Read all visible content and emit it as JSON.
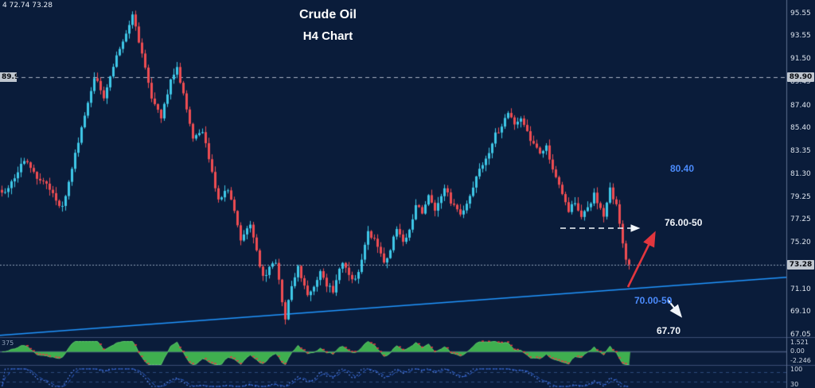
{
  "header": {
    "title_line1": "Crude Oil",
    "title_line2": "H4 Chart",
    "ohlc_info": "4 72.74 73.28"
  },
  "colors": {
    "background": "#0a1c3a",
    "bull_candle": "#3fc8e8",
    "bear_candle": "#ee4d52",
    "trendline": "#2196ff",
    "annotation_blue": "#4b8bfc",
    "annotation_white": "#f2f6fb",
    "indicator_green": "#3faf4f",
    "indicator_blue": "#5b8dff",
    "badge_bg": "#bfc6cf",
    "axis_text": "#dde4ee"
  },
  "axis": {
    "price_ticks": [
      {
        "label": "95.55",
        "price": 95.55
      },
      {
        "label": "93.55",
        "price": 93.55
      },
      {
        "label": "91.50",
        "price": 91.5
      },
      {
        "label": "89.45",
        "price": 89.45
      },
      {
        "label": "87.40",
        "price": 87.4
      },
      {
        "label": "85.40",
        "price": 85.4
      },
      {
        "label": "83.35",
        "price": 83.35
      },
      {
        "label": "81.30",
        "price": 81.3
      },
      {
        "label": "79.25",
        "price": 79.25
      },
      {
        "label": "77.25",
        "price": 77.25
      },
      {
        "label": "75.20",
        "price": 75.2
      },
      {
        "label": "71.10",
        "price": 71.1
      },
      {
        "label": "69.10",
        "price": 69.1
      },
      {
        "label": "67.05",
        "price": 67.05
      }
    ],
    "current_price_badge": {
      "label": "73.28",
      "price": 73.28
    },
    "level_badge": {
      "label": "89.90",
      "price": 89.9
    }
  },
  "annotations": [
    {
      "id": "level-80-40",
      "label": "80.40",
      "color_role": "blue",
      "price": 80.4
    },
    {
      "id": "zone-76",
      "label": "76.00-50",
      "color_role": "white",
      "price_zone": [
        76.0,
        76.5
      ]
    },
    {
      "id": "zone-70",
      "label": "70.00-50",
      "color_role": "blue",
      "price_zone": [
        70.0,
        70.5
      ]
    },
    {
      "id": "level-67-70",
      "label": "67.70",
      "color_role": "white",
      "price": 67.7
    }
  ],
  "indicator1": {
    "left_label": "375",
    "axis_labels": [
      "1.521",
      "0.00",
      "-2.246"
    ]
  },
  "indicator2": {
    "axis_labels": [
      "100",
      "30"
    ]
  },
  "chart_data": {
    "type": "candlestick",
    "title": "Crude Oil",
    "timeframe": "H4",
    "price_axis": {
      "min": 66.3,
      "max": 96.8,
      "ticks": [
        95.55,
        93.55,
        91.5,
        89.45,
        87.4,
        85.4,
        83.35,
        81.3,
        79.25,
        77.25,
        75.2,
        71.1,
        69.1,
        67.05
      ]
    },
    "current_price": 73.28,
    "resistance_line": 89.9,
    "target_zone_line": 76.5,
    "support_trendline": {
      "left_price": 67.0,
      "right_price": 72.15
    },
    "annotation_levels": {
      "upper_target": 80.4,
      "bounce_zone": "76.00-76.50",
      "trendline_zone": "70.00-70.50",
      "breakdown_target": 67.7
    },
    "close_waypoints": [
      [
        0,
        79.5
      ],
      [
        4,
        81.0
      ],
      [
        7,
        82.6
      ],
      [
        11,
        81.0
      ],
      [
        14,
        80.3
      ],
      [
        17,
        79.0
      ],
      [
        19,
        78.3
      ],
      [
        23,
        83.0
      ],
      [
        26,
        86.5
      ],
      [
        29,
        90.0
      ],
      [
        32,
        88.2
      ],
      [
        35,
        91.0
      ],
      [
        38,
        93.2
      ],
      [
        41,
        95.3
      ],
      [
        44,
        92.0
      ],
      [
        47,
        88.0
      ],
      [
        50,
        86.3
      ],
      [
        53,
        89.5
      ],
      [
        55,
        90.8
      ],
      [
        58,
        87.0
      ],
      [
        60,
        84.5
      ],
      [
        63,
        85.2
      ],
      [
        66,
        81.5
      ],
      [
        68,
        79.0
      ],
      [
        71,
        80.0
      ],
      [
        73,
        78.0
      ],
      [
        75,
        75.6
      ],
      [
        78,
        77.0
      ],
      [
        80,
        74.5
      ],
      [
        82,
        72.1
      ],
      [
        84,
        73.0
      ],
      [
        86,
        73.6
      ],
      [
        88,
        70.0
      ],
      [
        89,
        68.4
      ],
      [
        91,
        71.5
      ],
      [
        93,
        73.0
      ],
      [
        96,
        70.6
      ],
      [
        98,
        71.5
      ],
      [
        100,
        72.5
      ],
      [
        102,
        71.5
      ],
      [
        104,
        71.0
      ],
      [
        107,
        73.6
      ],
      [
        110,
        71.8
      ],
      [
        112,
        72.5
      ],
      [
        115,
        76.3
      ],
      [
        118,
        74.9
      ],
      [
        120,
        73.5
      ],
      [
        122,
        74.5
      ],
      [
        124,
        76.6
      ],
      [
        126,
        75.2
      ],
      [
        128,
        76.5
      ],
      [
        130,
        78.4
      ],
      [
        132,
        78.0
      ],
      [
        134,
        79.5
      ],
      [
        136,
        78.0
      ],
      [
        139,
        80.2
      ],
      [
        141,
        78.8
      ],
      [
        144,
        77.7
      ],
      [
        146,
        78.8
      ],
      [
        148,
        80.2
      ],
      [
        150,
        81.6
      ],
      [
        153,
        83.0
      ],
      [
        155,
        84.8
      ],
      [
        157,
        85.5
      ],
      [
        159,
        86.8
      ],
      [
        161,
        85.5
      ],
      [
        163,
        86.3
      ],
      [
        166,
        84.4
      ],
      [
        169,
        83.0
      ],
      [
        171,
        83.7
      ],
      [
        174,
        80.9
      ],
      [
        176,
        79.5
      ],
      [
        178,
        78.1
      ],
      [
        180,
        78.8
      ],
      [
        182,
        77.4
      ],
      [
        184,
        78.3
      ],
      [
        186,
        79.5
      ],
      [
        188,
        78.3
      ],
      [
        189,
        77.7
      ],
      [
        191,
        80.0
      ],
      [
        193,
        78.5
      ],
      [
        194,
        77.0
      ],
      [
        196,
        73.6
      ],
      [
        197,
        73.28
      ]
    ]
  }
}
